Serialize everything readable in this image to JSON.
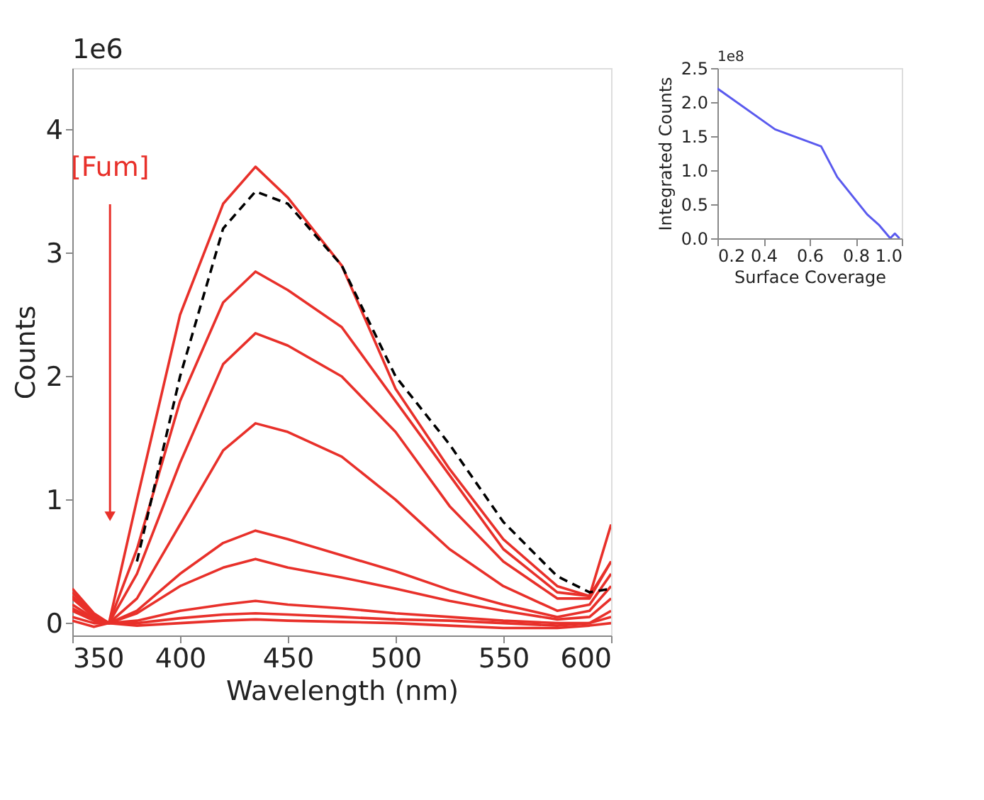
{
  "chart_data": [
    {
      "type": "line",
      "xlabel": "Wavelength (nm)",
      "ylabel": "Counts",
      "x": [
        350,
        360,
        367,
        380,
        400,
        420,
        435,
        450,
        475,
        500,
        525,
        550,
        575,
        590,
        600
      ],
      "series": [
        {
          "color": "#e8302a",
          "values": [
            0.28,
            0.08,
            0,
            1.0,
            2.5,
            3.4,
            3.7,
            3.45,
            2.9,
            1.9,
            1.25,
            0.68,
            0.3,
            0.22,
            0.8
          ]
        },
        {
          "color": "#e8302a",
          "values": [
            0.25,
            0.07,
            0,
            0.6,
            1.8,
            2.6,
            2.85,
            2.7,
            2.4,
            1.8,
            1.2,
            0.6,
            0.25,
            0.22,
            0.5
          ]
        },
        {
          "color": "#e8302a",
          "values": [
            0.22,
            0.06,
            0,
            0.4,
            1.3,
            2.1,
            2.35,
            2.25,
            2.0,
            1.55,
            0.95,
            0.5,
            0.2,
            0.2,
            0.5
          ]
        },
        {
          "color": "#e8302a",
          "values": [
            0.2,
            0.05,
            0,
            0.2,
            0.8,
            1.4,
            1.62,
            1.55,
            1.35,
            1.0,
            0.6,
            0.3,
            0.1,
            0.15,
            0.4
          ]
        },
        {
          "color": "#e8302a",
          "values": [
            0.15,
            0.04,
            0,
            0.1,
            0.4,
            0.65,
            0.75,
            0.68,
            0.55,
            0.42,
            0.27,
            0.15,
            0.05,
            0.1,
            0.3
          ]
        },
        {
          "color": "#e8302a",
          "values": [
            0.12,
            0.03,
            0,
            0.08,
            0.3,
            0.45,
            0.52,
            0.45,
            0.37,
            0.28,
            0.18,
            0.1,
            0.03,
            0.05,
            0.2
          ]
        },
        {
          "color": "#e8302a",
          "values": [
            0.1,
            0.02,
            0,
            0.02,
            0.1,
            0.15,
            0.18,
            0.15,
            0.12,
            0.08,
            0.05,
            0.02,
            0,
            0,
            0.1
          ]
        },
        {
          "color": "#e8302a",
          "values": [
            0.05,
            0,
            0,
            0,
            0.04,
            0.07,
            0.08,
            0.07,
            0.05,
            0.03,
            0.02,
            0,
            -0.02,
            0,
            0.05
          ]
        },
        {
          "color": "#e8302a",
          "values": [
            0.02,
            -0.03,
            0,
            -0.02,
            0,
            0.02,
            0.03,
            0.02,
            0.01,
            0,
            -0.02,
            -0.04,
            -0.04,
            -0.02,
            0
          ]
        },
        {
          "color": "#000000",
          "line_style": "dashed",
          "values": [
            null,
            null,
            null,
            0.5,
            2.0,
            3.2,
            3.5,
            3.4,
            2.9,
            2.0,
            1.45,
            0.82,
            0.38,
            0.25,
            0.28
          ]
        }
      ],
      "xlim": [
        350,
        600
      ],
      "xticks": [
        350,
        400,
        450,
        500,
        550,
        600
      ],
      "ylim": [
        -0.1,
        4.5
      ],
      "yticks": [
        0,
        1,
        2,
        3,
        4
      ],
      "grid": false,
      "annotations": [
        "1e6",
        "[Fum]"
      ]
    },
    {
      "type": "line",
      "xlabel": "Surface Coverage",
      "ylabel": "Integrated Counts",
      "x": [
        0.2,
        0.45,
        0.65,
        0.72,
        0.85,
        0.9,
        0.95,
        0.97,
        0.99
      ],
      "series": [
        {
          "color": "#5a5aee",
          "values": [
            2.2,
            1.6,
            1.35,
            0.9,
            0.35,
            0.2,
            0.0,
            0.07,
            0.0
          ]
        }
      ],
      "xlim": [
        0.2,
        1.0
      ],
      "xticks": [
        0.2,
        0.4,
        0.6,
        0.8,
        {
          "value": 1,
          "label": "1.0"
        }
      ],
      "ylim": [
        0,
        2.5
      ],
      "yticks": [
        {
          "value": 0,
          "label": "0.0"
        },
        0.5,
        {
          "value": 1,
          "label": "1.0"
        },
        1.5,
        {
          "value": 2,
          "label": "2.0"
        },
        2.5
      ],
      "grid": false,
      "annotations": [
        "1e8"
      ]
    }
  ]
}
